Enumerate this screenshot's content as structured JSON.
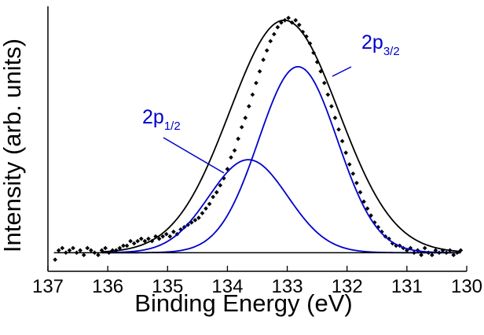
{
  "chart_data": {
    "type": "line",
    "title": "",
    "xlabel": "Binding Energy (eV)",
    "ylabel": "Intensity (arb. units)",
    "xlim": [
      137,
      130
    ],
    "ylim": [
      -0.08,
      1.06
    ],
    "x_reversed": true,
    "x_ticks": [
      137,
      136,
      135,
      134,
      133,
      132,
      131,
      130
    ],
    "x_tick_labels": [
      "137",
      "136",
      "135",
      "134",
      "133",
      "132",
      "131",
      "130"
    ],
    "y_tick_labels_visible": false,
    "grid": false,
    "legend": "none",
    "colors": {
      "data": "#000000",
      "envelope": "#000000",
      "components": "#0000cc"
    },
    "components": [
      {
        "name": "2p1/2",
        "label_main": "2p",
        "label_sub": "1/2",
        "center": 133.65,
        "amplitude": 0.4,
        "fwhm": 1.55
      },
      {
        "name": "2p3/2",
        "label_main": "2p",
        "label_sub": "3/2",
        "center": 132.82,
        "amplitude": 0.8,
        "fwhm": 1.55
      }
    ],
    "envelope": {
      "center": 133.05,
      "amplitude": 1.0,
      "fwhm": 2.15
    },
    "baseline": 0.0,
    "data_points": [
      [
        136.88,
        -0.03
      ],
      [
        136.82,
        0.01
      ],
      [
        136.76,
        0.02
      ],
      [
        136.7,
        0.0
      ],
      [
        136.64,
        0.01
      ],
      [
        136.58,
        0.02
      ],
      [
        136.52,
        0.0
      ],
      [
        136.46,
        0.01
      ],
      [
        136.4,
        -0.01
      ],
      [
        136.34,
        0.02
      ],
      [
        136.28,
        0.01
      ],
      [
        136.22,
        0.0
      ],
      [
        136.16,
        -0.01
      ],
      [
        136.1,
        0.01
      ],
      [
        136.04,
        0.02
      ],
      [
        135.98,
        0.0
      ],
      [
        135.92,
        0.01
      ],
      [
        135.86,
        0.01
      ],
      [
        135.8,
        0.02
      ],
      [
        135.74,
        0.03
      ],
      [
        135.68,
        0.03
      ],
      [
        135.62,
        0.05
      ],
      [
        135.56,
        0.04
      ],
      [
        135.5,
        0.05
      ],
      [
        135.44,
        0.06
      ],
      [
        135.38,
        0.05
      ],
      [
        135.32,
        0.06
      ],
      [
        135.26,
        0.05
      ],
      [
        135.2,
        0.07
      ],
      [
        135.14,
        0.06
      ],
      [
        135.08,
        0.07
      ],
      [
        135.02,
        0.08
      ],
      [
        134.96,
        0.07
      ],
      [
        134.9,
        0.09
      ],
      [
        134.84,
        0.08
      ],
      [
        134.78,
        0.1
      ],
      [
        134.72,
        0.11
      ],
      [
        134.66,
        0.12
      ],
      [
        134.6,
        0.13
      ],
      [
        134.54,
        0.14
      ],
      [
        134.48,
        0.15
      ],
      [
        134.42,
        0.17
      ],
      [
        134.36,
        0.19
      ],
      [
        134.3,
        0.21
      ],
      [
        134.24,
        0.24
      ],
      [
        134.18,
        0.26
      ],
      [
        134.12,
        0.29
      ],
      [
        134.06,
        0.32
      ],
      [
        134.0,
        0.36
      ],
      [
        133.94,
        0.41
      ],
      [
        133.88,
        0.44
      ],
      [
        133.82,
        0.49
      ],
      [
        133.76,
        0.54
      ],
      [
        133.7,
        0.58
      ],
      [
        133.64,
        0.63
      ],
      [
        133.58,
        0.68
      ],
      [
        133.52,
        0.73
      ],
      [
        133.46,
        0.78
      ],
      [
        133.4,
        0.83
      ],
      [
        133.34,
        0.87
      ],
      [
        133.28,
        0.91
      ],
      [
        133.22,
        0.94
      ],
      [
        133.16,
        0.97
      ],
      [
        133.1,
        0.99
      ],
      [
        133.04,
        1.0
      ],
      [
        132.98,
        1.01
      ],
      [
        132.92,
        0.99
      ],
      [
        132.86,
        1.0
      ],
      [
        132.8,
        0.98
      ],
      [
        132.74,
        0.95
      ],
      [
        132.68,
        0.93
      ],
      [
        132.62,
        0.9
      ],
      [
        132.56,
        0.86
      ],
      [
        132.5,
        0.82
      ],
      [
        132.44,
        0.78
      ],
      [
        132.38,
        0.73
      ],
      [
        132.32,
        0.68
      ],
      [
        132.26,
        0.63
      ],
      [
        132.2,
        0.58
      ],
      [
        132.14,
        0.53
      ],
      [
        132.08,
        0.48
      ],
      [
        132.02,
        0.43
      ],
      [
        131.96,
        0.38
      ],
      [
        131.9,
        0.34
      ],
      [
        131.84,
        0.3
      ],
      [
        131.78,
        0.26
      ],
      [
        131.72,
        0.22
      ],
      [
        131.66,
        0.19
      ],
      [
        131.6,
        0.16
      ],
      [
        131.54,
        0.13
      ],
      [
        131.48,
        0.11
      ],
      [
        131.42,
        0.09
      ],
      [
        131.36,
        0.07
      ],
      [
        131.3,
        0.06
      ],
      [
        131.24,
        0.04
      ],
      [
        131.18,
        0.03
      ],
      [
        131.12,
        0.03
      ],
      [
        131.06,
        0.02
      ],
      [
        131.0,
        0.01
      ],
      [
        130.94,
        0.02
      ],
      [
        130.88,
        0.0
      ],
      [
        130.82,
        0.01
      ],
      [
        130.76,
        -0.01
      ],
      [
        130.7,
        0.02
      ],
      [
        130.64,
        0.0
      ],
      [
        130.58,
        -0.01
      ],
      [
        130.52,
        0.01
      ],
      [
        130.46,
        0.0
      ],
      [
        130.4,
        0.01
      ],
      [
        130.34,
        0.0
      ],
      [
        130.28,
        0.01
      ],
      [
        130.22,
        -0.01
      ],
      [
        130.16,
        0.0
      ],
      [
        130.1,
        0.01
      ]
    ]
  }
}
